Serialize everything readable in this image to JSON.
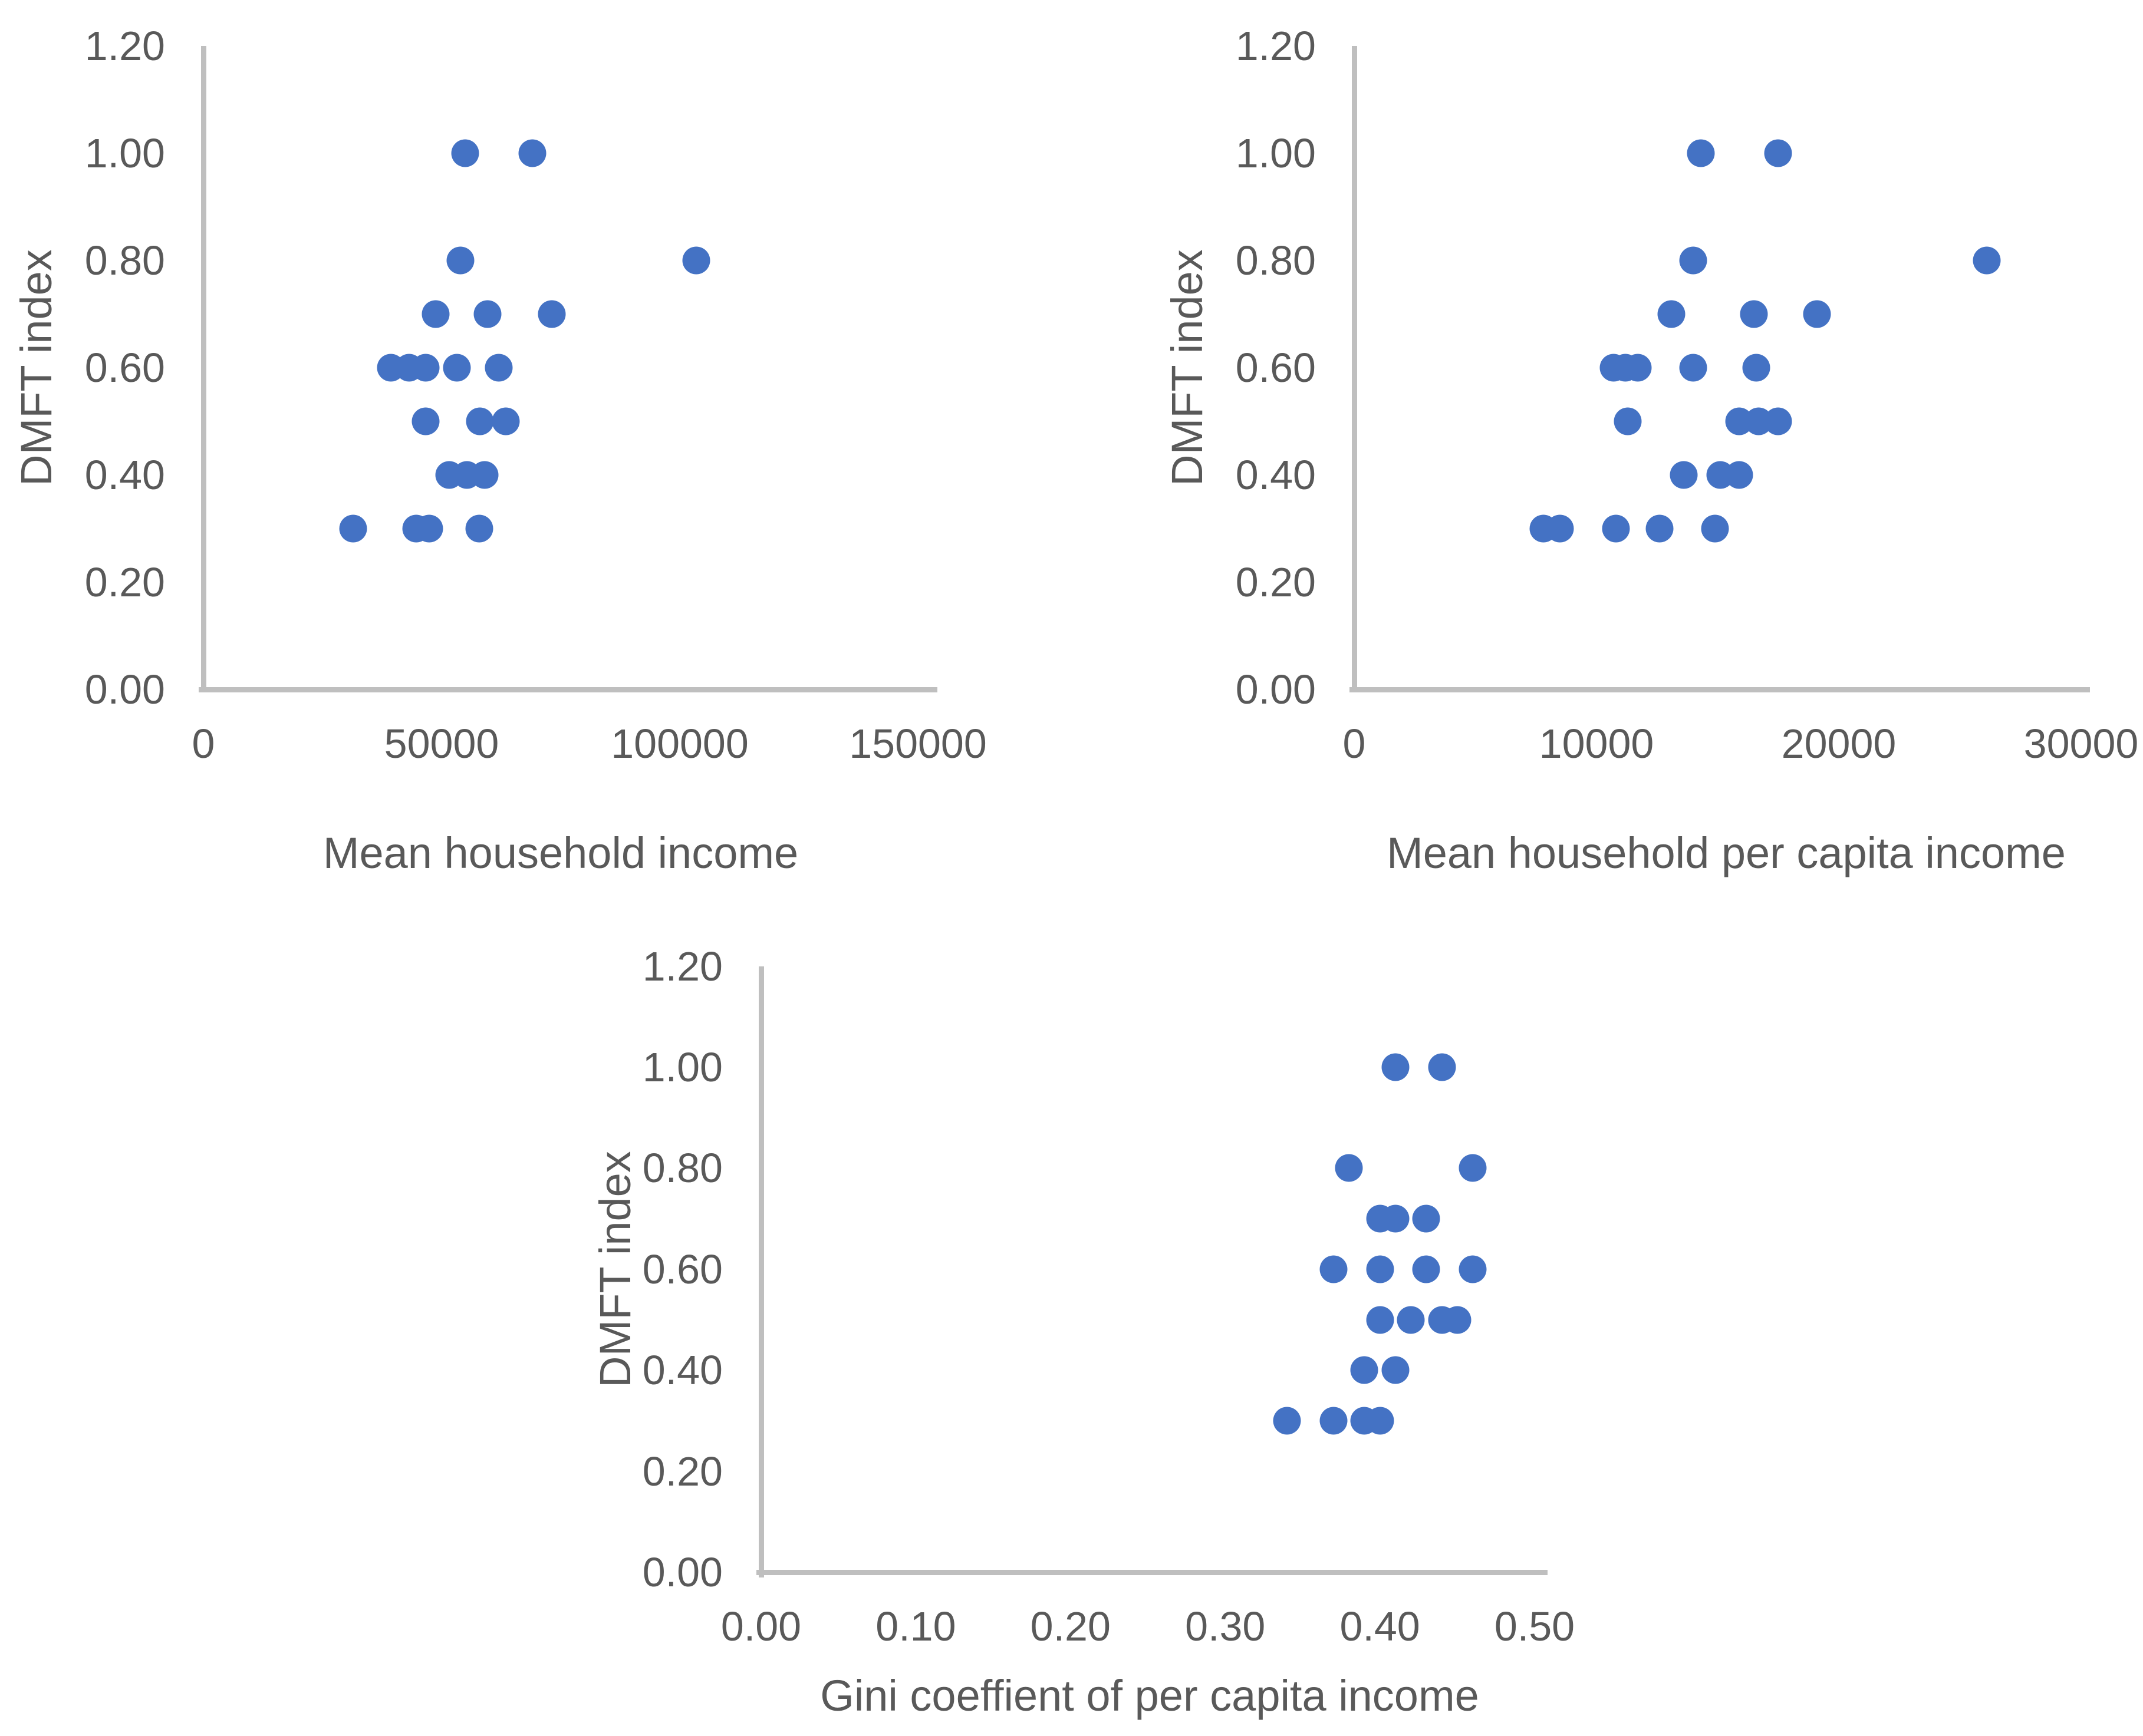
{
  "page": {
    "marker_color": "#4472C4",
    "axis_line_color": "#BFBFBF",
    "text_color": "#595959"
  },
  "chart_data": [
    {
      "type": "scatter",
      "title": "",
      "xlabel": "Mean household income",
      "ylabel": "DMFT index",
      "xlim": [
        0,
        150000
      ],
      "ylim": [
        0,
        1.2
      ],
      "grid": false,
      "legend": "none",
      "x_ticks": [
        0,
        50000,
        100000,
        150000
      ],
      "x_tick_labels": [
        "0",
        "50000",
        "100000",
        "150000"
      ],
      "y_ticks": [
        0,
        0.2,
        0.4,
        0.6,
        0.8,
        1.0,
        1.2
      ],
      "y_tick_labels": [
        "0.00",
        "0.20",
        "0.40",
        "0.60",
        "0.80",
        "1.00",
        "1.20"
      ],
      "points": [
        [
          55000,
          1.0
        ],
        [
          69000,
          1.0
        ],
        [
          54000,
          0.8
        ],
        [
          103500,
          0.8
        ],
        [
          48800,
          0.7
        ],
        [
          59700,
          0.7
        ],
        [
          73200,
          0.7
        ],
        [
          39400,
          0.6
        ],
        [
          43200,
          0.6
        ],
        [
          46700,
          0.6
        ],
        [
          53200,
          0.6
        ],
        [
          62000,
          0.6
        ],
        [
          46700,
          0.5
        ],
        [
          58000,
          0.5
        ],
        [
          63500,
          0.5
        ],
        [
          51600,
          0.4
        ],
        [
          55300,
          0.4
        ],
        [
          59000,
          0.4
        ],
        [
          31400,
          0.3
        ],
        [
          44700,
          0.3
        ],
        [
          47400,
          0.3
        ],
        [
          57900,
          0.3
        ]
      ]
    },
    {
      "type": "scatter",
      "title": "",
      "xlabel": "Mean household per capita income",
      "ylabel": "DMFT index",
      "xlim": [
        0,
        30000
      ],
      "ylim": [
        0,
        1.2
      ],
      "grid": false,
      "legend": "none",
      "x_ticks": [
        0,
        10000,
        20000,
        30000
      ],
      "x_tick_labels": [
        "0",
        "10000",
        "20000",
        "30000"
      ],
      "y_ticks": [
        0,
        0.2,
        0.4,
        0.6,
        0.8,
        1.0,
        1.2
      ],
      "y_tick_labels": [
        "0.00",
        "0.20",
        "0.40",
        "0.60",
        "0.80",
        "1.00",
        "1.20"
      ],
      "points": [
        [
          14300,
          1.0
        ],
        [
          17500,
          1.0
        ],
        [
          14000,
          0.8
        ],
        [
          26100,
          0.8
        ],
        [
          13100,
          0.7
        ],
        [
          16500,
          0.7
        ],
        [
          19100,
          0.7
        ],
        [
          10700,
          0.6
        ],
        [
          11200,
          0.6
        ],
        [
          11700,
          0.6
        ],
        [
          14000,
          0.6
        ],
        [
          16600,
          0.6
        ],
        [
          11300,
          0.5
        ],
        [
          15900,
          0.5
        ],
        [
          16700,
          0.5
        ],
        [
          17500,
          0.5
        ],
        [
          13600,
          0.4
        ],
        [
          15100,
          0.4
        ],
        [
          15900,
          0.4
        ],
        [
          7800,
          0.3
        ],
        [
          8500,
          0.3
        ],
        [
          10800,
          0.3
        ],
        [
          12600,
          0.3
        ],
        [
          14900,
          0.3
        ]
      ]
    },
    {
      "type": "scatter",
      "title": "",
      "xlabel": "Gini coeffient of per capita income",
      "ylabel": "DMFT index",
      "xlim": [
        0,
        0.5
      ],
      "ylim": [
        0,
        1.2
      ],
      "grid": false,
      "legend": "none",
      "x_ticks": [
        0,
        0.1,
        0.2,
        0.3,
        0.4,
        0.5
      ],
      "x_tick_labels": [
        "0.00",
        "0.10",
        "0.20",
        "0.30",
        "0.40",
        "0.50"
      ],
      "y_ticks": [
        0,
        0.2,
        0.4,
        0.6,
        0.8,
        1.0,
        1.2
      ],
      "y_tick_labels": [
        "0.00",
        "0.20",
        "0.40",
        "0.60",
        "0.80",
        "1.00",
        "1.20"
      ],
      "points": [
        [
          0.41,
          1.0
        ],
        [
          0.44,
          1.0
        ],
        [
          0.38,
          0.8
        ],
        [
          0.46,
          0.8
        ],
        [
          0.4,
          0.7
        ],
        [
          0.41,
          0.7
        ],
        [
          0.43,
          0.7
        ],
        [
          0.37,
          0.6
        ],
        [
          0.4,
          0.6
        ],
        [
          0.43,
          0.6
        ],
        [
          0.46,
          0.6
        ],
        [
          0.4,
          0.5
        ],
        [
          0.42,
          0.5
        ],
        [
          0.44,
          0.5
        ],
        [
          0.45,
          0.5
        ],
        [
          0.39,
          0.4
        ],
        [
          0.41,
          0.4
        ],
        [
          0.34,
          0.3
        ],
        [
          0.37,
          0.3
        ],
        [
          0.39,
          0.3
        ],
        [
          0.4,
          0.3
        ]
      ]
    }
  ]
}
